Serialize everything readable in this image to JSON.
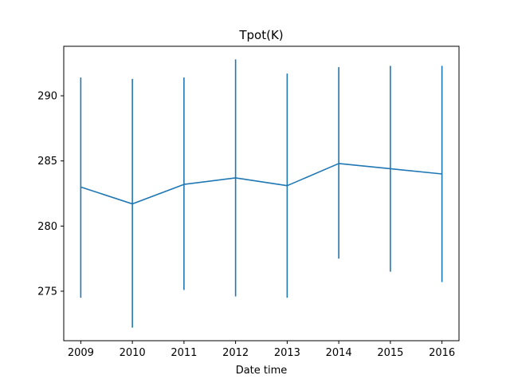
{
  "chart_data": {
    "type": "line",
    "title": "Tpot(K)",
    "xlabel": "Date time",
    "ylabel": "",
    "x": [
      2009,
      2010,
      2011,
      2012,
      2013,
      2014,
      2015,
      2016
    ],
    "x_tick_labels": [
      "2009",
      "2010",
      "2011",
      "2012",
      "2013",
      "2014",
      "2015",
      "2016"
    ],
    "y_ticks": [
      275,
      280,
      285,
      290
    ],
    "y_tick_labels": [
      "275",
      "280",
      "285",
      "290"
    ],
    "series": [
      {
        "values": [
          283.0,
          281.7,
          283.2,
          283.7,
          283.1,
          284.8,
          284.4,
          284.0
        ],
        "error_low": [
          274.5,
          272.2,
          275.1,
          274.6,
          274.5,
          277.5,
          276.5,
          275.7
        ],
        "error_high": [
          291.4,
          291.3,
          291.4,
          292.8,
          291.7,
          292.2,
          292.3,
          292.3
        ],
        "color": "#1f77b4"
      }
    ],
    "xlim": [
      2008.67,
      2016.33
    ],
    "ylim": [
      271.2,
      293.8
    ],
    "grid": false,
    "legend": "none"
  }
}
